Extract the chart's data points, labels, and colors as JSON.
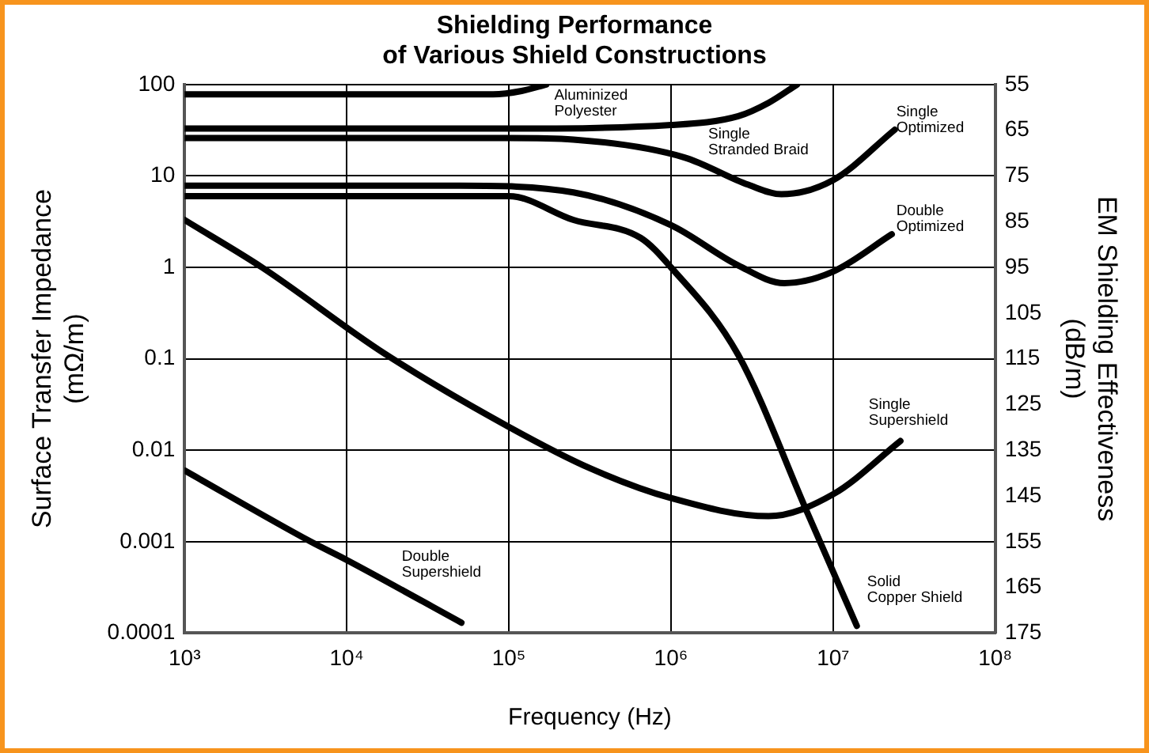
{
  "chart_data": {
    "type": "line",
    "title": "Shielding Performance\nof Various Shield Constructions",
    "xlabel": "Frequency (Hz)",
    "ylabel": "Surface Transfer Impedance\n(mΩ/m)",
    "y2label": "EM Shielding Effectiveness\n(dB/m)",
    "log": "xy",
    "grid": true,
    "legend": false,
    "marker": "none",
    "line_style": "solid",
    "xlim": [
      1000,
      100000000
    ],
    "xticks": [
      {
        "value": 1000,
        "label": "10³"
      },
      {
        "value": 10000,
        "label": "10⁴"
      },
      {
        "value": 100000,
        "label": "10⁵"
      },
      {
        "value": 1000000,
        "label": "10⁶"
      },
      {
        "value": 10000000,
        "label": "10⁷"
      },
      {
        "value": 100000000,
        "label": "10⁸"
      }
    ],
    "ylim": [
      0.0001,
      100
    ],
    "yticks": [
      0.0001,
      0.001,
      0.01,
      0.1,
      1,
      10,
      100
    ],
    "y2lim": [
      175,
      55
    ],
    "y2ticks": [
      55,
      65,
      75,
      85,
      95,
      105,
      115,
      125,
      135,
      145,
      155,
      165,
      175
    ],
    "series": [
      {
        "name": "Aluminized\nPolyester",
        "color": "#000000",
        "x": [
          1000,
          10000,
          80000,
          120000,
          170000
        ],
        "values": [
          78,
          78,
          78,
          85,
          100
        ]
      },
      {
        "name": "Single\nStranded Braid",
        "color": "#000000",
        "x": [
          1000,
          100000,
          1000000,
          2600000,
          4000000,
          6000000
        ],
        "values": [
          33,
          33,
          36,
          45,
          63,
          100
        ]
      },
      {
        "name": "Single\nOptimized",
        "color": "#000000",
        "x": [
          1000,
          100000,
          250000,
          1200000,
          3000000,
          4800000,
          10000000,
          24000000
        ],
        "values": [
          26,
          26,
          25,
          16,
          8,
          6.3,
          9,
          32
        ]
      },
      {
        "name": "Double\nOptimized",
        "color": "#000000",
        "x": [
          1000,
          50000,
          250000,
          1000000,
          2600000,
          5000000,
          10000000,
          23000000
        ],
        "values": [
          7.8,
          7.8,
          6.6,
          2.9,
          1.05,
          0.67,
          0.9,
          2.3
        ]
      },
      {
        "name": "Solid\nCopper Shield",
        "color": "#000000",
        "x": [
          1000,
          100000,
          250000,
          650000,
          1000000,
          2600000,
          7000000,
          14000000
        ],
        "values": [
          6,
          6,
          3.3,
          2.1,
          1,
          0.11,
          0.002,
          0.00012
        ]
      },
      {
        "name": "Single\nSupershield",
        "color": "#000000",
        "x": [
          1000,
          3000,
          17000,
          100000,
          320000,
          1000000,
          4000000,
          10000000,
          26000000
        ],
        "values": [
          3.3,
          1,
          0.115,
          0.018,
          0.0063,
          0.003,
          0.0019,
          0.0033,
          0.0126
        ]
      },
      {
        "name": "Double\nSupershield",
        "color": "#000000",
        "x": [
          1000,
          6000,
          10000,
          51000
        ],
        "values": [
          0.006,
          0.001,
          0.00063,
          0.00013
        ]
      }
    ]
  }
}
